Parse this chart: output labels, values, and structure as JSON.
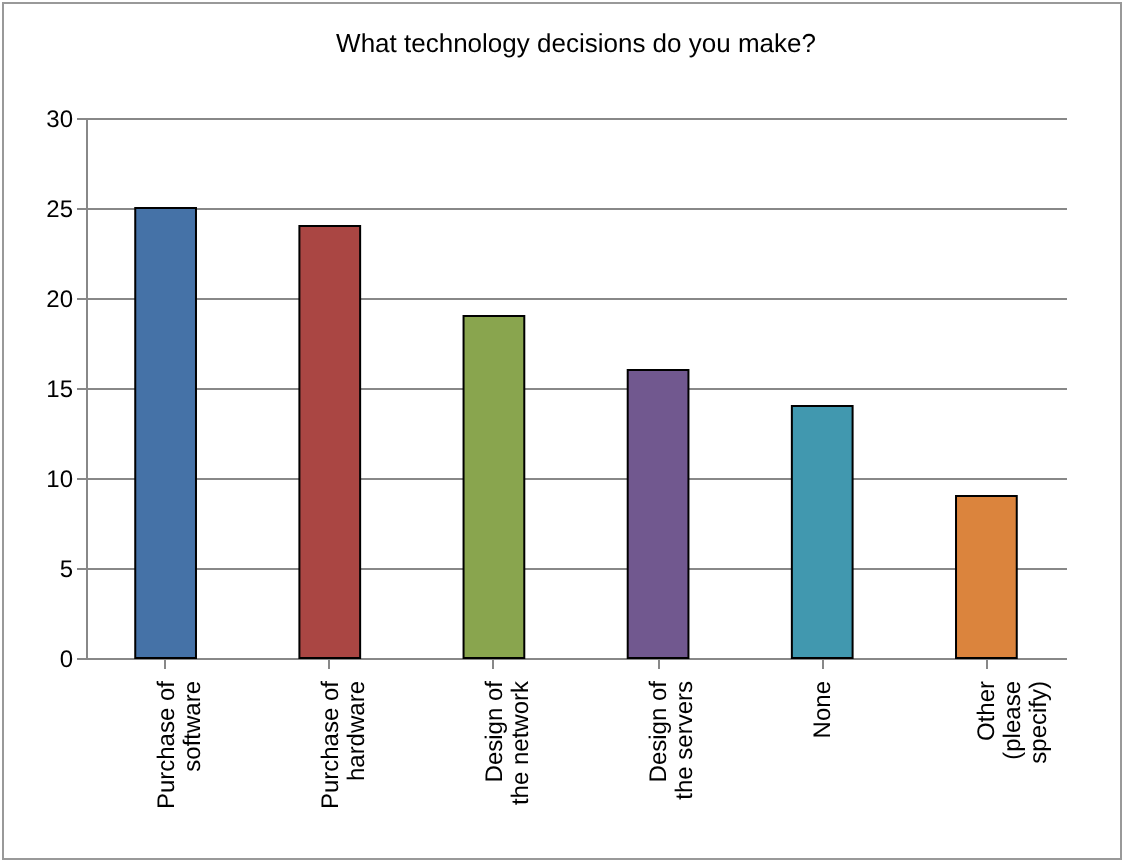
{
  "chart_data": {
    "type": "bar",
    "title": "What technology decisions do you make?",
    "categories": [
      "Purchase of\nsoftware",
      "Purchase of\nhardware",
      "Design of\nthe network",
      "Design of\nthe servers",
      "None",
      "Other\n(please\nspecify)"
    ],
    "values": [
      25,
      24,
      19,
      16,
      14,
      9
    ],
    "colors": [
      "#4572a7",
      "#aa4643",
      "#89a54e",
      "#71588f",
      "#4198af",
      "#db843d"
    ],
    "ylim": [
      0,
      30
    ],
    "yticks": [
      0,
      5,
      10,
      15,
      20,
      25,
      30
    ],
    "grid": "y",
    "legend": false
  }
}
